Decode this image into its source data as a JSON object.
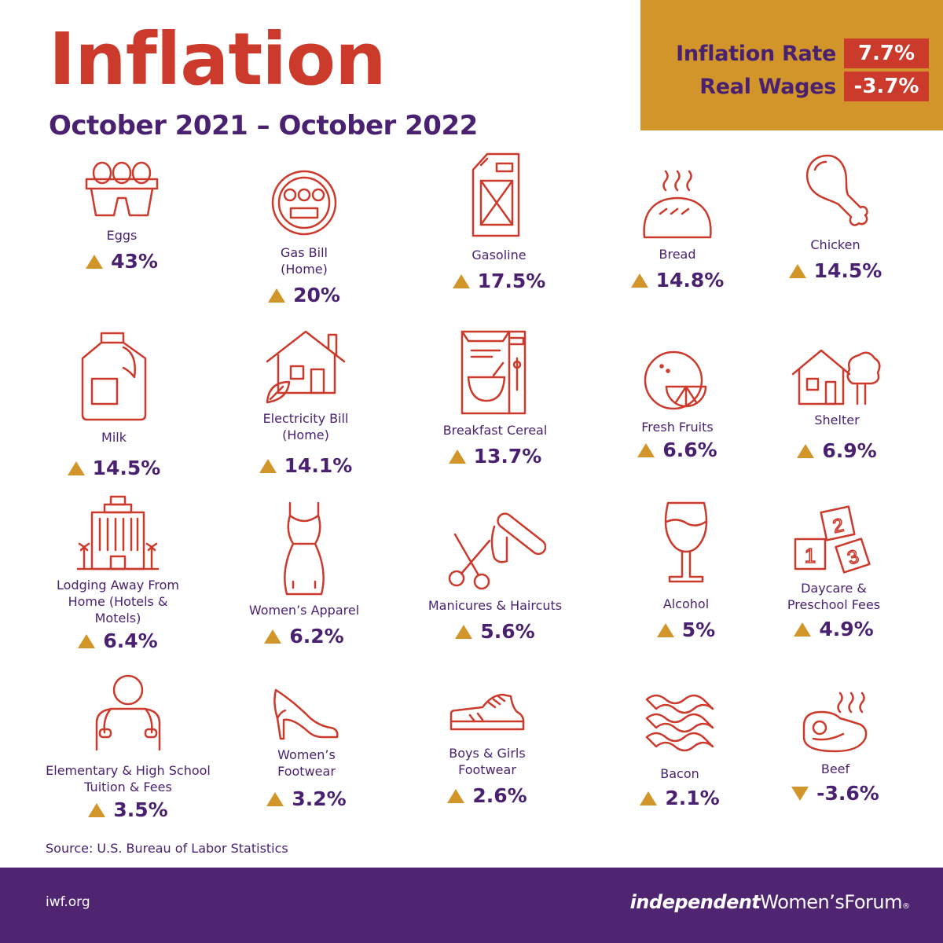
{
  "title": "Inflation",
  "subtitle": "October 2021 – October 2022",
  "summary": {
    "inflation_label": "Inflation Rate",
    "inflation_value": "7.7%",
    "wages_label": "Real Wages",
    "wages_value": "-3.7%"
  },
  "items": [
    {
      "label": "Eggs",
      "value": "43%",
      "direction": "up",
      "icon": "egg-carton-icon"
    },
    {
      "label": "Gas Bill (Home)",
      "value": "20%",
      "direction": "up",
      "icon": "gas-meter-icon"
    },
    {
      "label": "Gasoline",
      "value": "17.5%",
      "direction": "up",
      "icon": "fuel-can-icon"
    },
    {
      "label": "Bread",
      "value": "14.8%",
      "direction": "up",
      "icon": "bread-icon"
    },
    {
      "label": "Chicken",
      "value": "14.5%",
      "direction": "up",
      "icon": "chicken-leg-icon"
    },
    {
      "label": "Milk",
      "value": "14.5%",
      "direction": "up",
      "icon": "milk-jug-icon"
    },
    {
      "label": "Electricity Bill (Home)",
      "value": "14.1%",
      "direction": "up",
      "icon": "eco-house-icon"
    },
    {
      "label": "Breakfast Cereal",
      "value": "13.7%",
      "direction": "up",
      "icon": "cereal-box-icon"
    },
    {
      "label": "Fresh Fruits",
      "value": "6.6%",
      "direction": "up",
      "icon": "citrus-icon"
    },
    {
      "label": "Shelter",
      "value": "6.9%",
      "direction": "up",
      "icon": "house-tree-icon"
    },
    {
      "label": "Lodging Away From Home (Hotels & Motels)",
      "value": "6.4%",
      "direction": "up",
      "icon": "hotel-icon"
    },
    {
      "label": "Women’s Apparel",
      "value": "6.2%",
      "direction": "up",
      "icon": "dress-icon"
    },
    {
      "label": "Manicures & Haircuts",
      "value": "5.6%",
      "direction": "up",
      "icon": "scissors-nail-file-icon"
    },
    {
      "label": "Alcohol",
      "value": "5%",
      "direction": "up",
      "icon": "wine-glass-icon"
    },
    {
      "label": "Daycare & Preschool Fees",
      "value": "4.9%",
      "direction": "up",
      "icon": "toy-blocks-icon"
    },
    {
      "label": "Elementary & High School Tuition & Fees",
      "value": "3.5%",
      "direction": "up",
      "icon": "student-backpack-icon"
    },
    {
      "label": "Women’s Footwear",
      "value": "3.2%",
      "direction": "up",
      "icon": "high-heel-icon"
    },
    {
      "label": "Boys & Girls Footwear",
      "value": "2.6%",
      "direction": "up",
      "icon": "sneaker-icon"
    },
    {
      "label": "Bacon",
      "value": "2.1%",
      "direction": "up",
      "icon": "bacon-icon"
    },
    {
      "label": "Beef",
      "value": "-3.6%",
      "direction": "down",
      "icon": "steak-icon"
    }
  ],
  "source": "Source: U.S. Bureau of Labor Statistics",
  "footer": {
    "url": "iwf.org",
    "logo_bold": "independent",
    "logo_rest": "Women’sForum",
    "logo_mark": "®"
  },
  "colors": {
    "red": "#cc3a2c",
    "purple": "#4a2170",
    "gold": "#d2952a"
  }
}
